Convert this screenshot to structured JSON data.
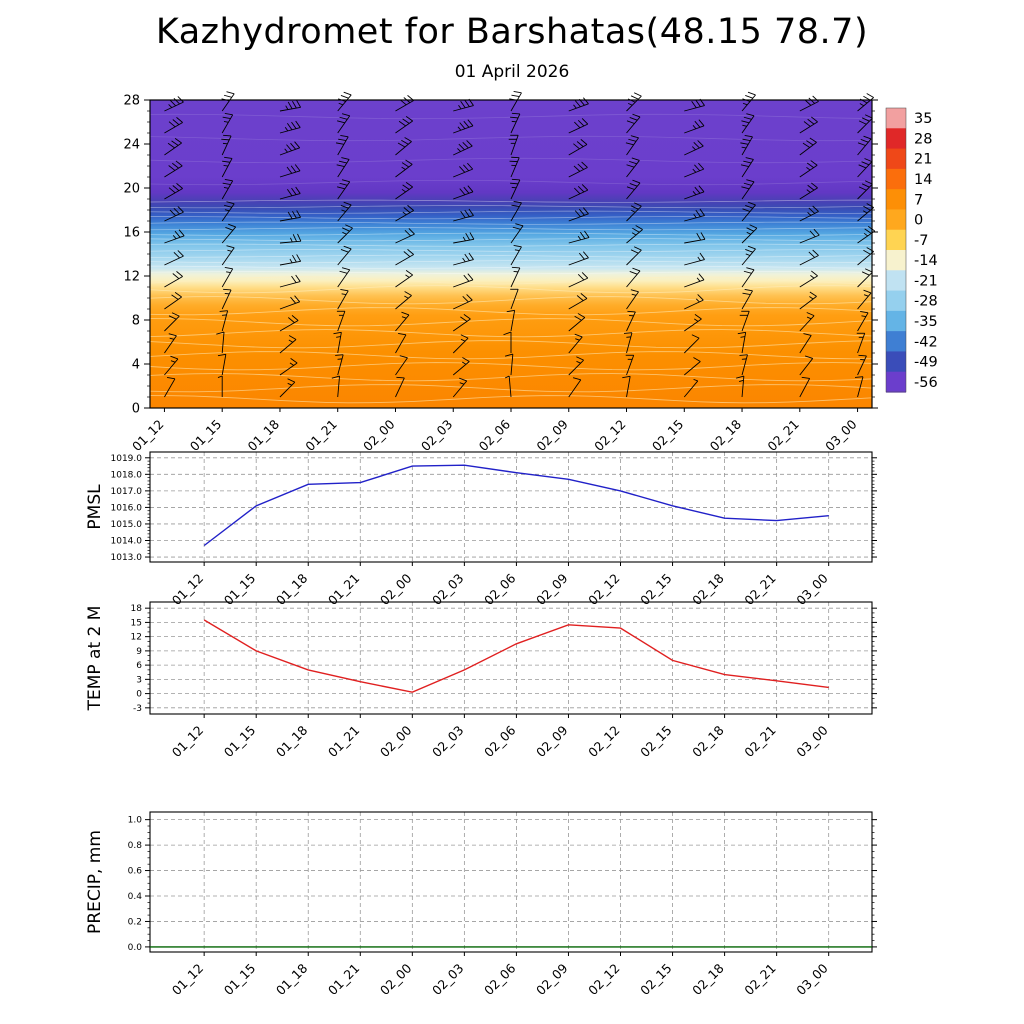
{
  "title": "Kazhydromet for Barshatas(48.15 78.7)",
  "subtitle": "01 April 2026",
  "x_times": [
    "01_12",
    "01_15",
    "01_18",
    "01_21",
    "02_00",
    "02_03",
    "02_06",
    "02_09",
    "02_12",
    "02_15",
    "02_18",
    "02_21",
    "03_00"
  ],
  "chart_data": [
    {
      "type": "heatmap",
      "name": "temperature-height-cross-section",
      "yticks": [
        0,
        4,
        8,
        12,
        16,
        20,
        24,
        28
      ],
      "ylim": [
        0,
        28
      ],
      "colorbar_labels": [
        "35",
        "28",
        "21",
        "14",
        "7",
        "0",
        "-7",
        "-14",
        "-21",
        "-28",
        "-35",
        "-42",
        "-49",
        "-56"
      ],
      "colorbar_colors": [
        "#F2A0A0",
        "#E02828",
        "#EF4818",
        "#FB6E0C",
        "#FD8F06",
        "#FFA81E",
        "#FFD452",
        "#F7F2CE",
        "#C0E2F2",
        "#95D0EE",
        "#64B4E6",
        "#3F7FD3",
        "#3A4DB9",
        "#6B3ECC"
      ],
      "gradient_stops": [
        [
          0.0,
          "#FB8500"
        ],
        [
          0.18,
          "#FC9000"
        ],
        [
          0.3,
          "#FF9E12"
        ],
        [
          0.335,
          "#FFAD2A"
        ],
        [
          0.365,
          "#FFC252"
        ],
        [
          0.39,
          "#FFDC85"
        ],
        [
          0.413,
          "#FBF0BE"
        ],
        [
          0.435,
          "#EEF2DC"
        ],
        [
          0.455,
          "#C8E6F1"
        ],
        [
          0.49,
          "#A3D6EF"
        ],
        [
          0.53,
          "#7FC4EA"
        ],
        [
          0.565,
          "#55A8E2"
        ],
        [
          0.6,
          "#3C7FD4"
        ],
        [
          0.625,
          "#3560C6"
        ],
        [
          0.65,
          "#3A4BB4"
        ],
        [
          0.675,
          "#4C3FB6"
        ],
        [
          0.7,
          "#6238C4"
        ],
        [
          0.75,
          "#6B3ECC"
        ],
        [
          1.0,
          "#6C41CC"
        ]
      ],
      "wind_barbs": {
        "levels_km": [
          1,
          3,
          5,
          7,
          9,
          11,
          13,
          15,
          17,
          19,
          21,
          23,
          25,
          27
        ],
        "dir_by_level": [
          20,
          30,
          25,
          35,
          45,
          50,
          55,
          60,
          55,
          50,
          48,
          45,
          50,
          55
        ],
        "spd_kt_by_level": [
          12,
          15,
          15,
          18,
          18,
          20,
          22,
          25,
          28,
          30,
          30,
          32,
          32,
          35
        ],
        "dir_jitter_by_time": [
          10,
          -20,
          25,
          -15,
          5,
          20,
          -25,
          15,
          -10,
          20,
          -15,
          8,
          -5
        ],
        "spd_jitter_by_time": [
          2,
          -3,
          4,
          0,
          -2,
          3,
          -4,
          2,
          0,
          -3,
          3,
          -2,
          1
        ]
      },
      "contours": {
        "wavy_heights": [
          0.8,
          1.8,
          2.8,
          3.8,
          4.8,
          5.8,
          6.8,
          7.8,
          8.8,
          9.8,
          10.8,
          11.6
        ],
        "dense_band": [
          12.3,
          18.9,
          0.5
        ],
        "upper_faint": [
          20.5,
          22.5,
          24.5,
          26.5
        ]
      }
    },
    {
      "type": "line",
      "name": "pmsl",
      "ylabel": "PMSL",
      "yticks": [
        1013,
        1014,
        1015,
        1016,
        1017,
        1018,
        1019
      ],
      "ytick_labels": [
        "1013.0",
        "1014.0",
        "1015.0",
        "1016.0",
        "1017.0",
        "1018.0",
        "1019.0"
      ],
      "ylim": [
        1012.7,
        1019.35
      ],
      "color": "#2121C8",
      "values": [
        1013.7,
        1016.1,
        1017.4,
        1017.5,
        1018.5,
        1018.55,
        1018.1,
        1017.7,
        1017.0,
        1016.1,
        1015.35,
        1015.2,
        1015.5
      ]
    },
    {
      "type": "line",
      "name": "temp-2m",
      "ylabel": "TEMP at 2 M",
      "yticks": [
        -3,
        0,
        3,
        6,
        9,
        12,
        15,
        18
      ],
      "ytick_labels": [
        "-3",
        "0",
        "3",
        "6",
        "9",
        "12",
        "15",
        "18"
      ],
      "ylim": [
        -4.3,
        19.3
      ],
      "color": "#E02020",
      "values": [
        15.5,
        9.0,
        5.0,
        2.5,
        0.3,
        5.0,
        10.5,
        14.5,
        13.8,
        7.0,
        4.0,
        2.7,
        1.3
      ]
    },
    {
      "type": "line",
      "name": "precip",
      "ylabel": "PRECIP, mm",
      "yticks": [
        0,
        0.2,
        0.4,
        0.6,
        0.8,
        1.0
      ],
      "ytick_labels": [
        "0.0",
        "0.2",
        "0.4",
        "0.6",
        "0.8",
        "1.0"
      ],
      "ylim": [
        -0.04,
        1.06
      ],
      "color": "#006400",
      "values": [
        0,
        0,
        0,
        0,
        0,
        0,
        0,
        0,
        0,
        0,
        0,
        0,
        0
      ]
    }
  ]
}
